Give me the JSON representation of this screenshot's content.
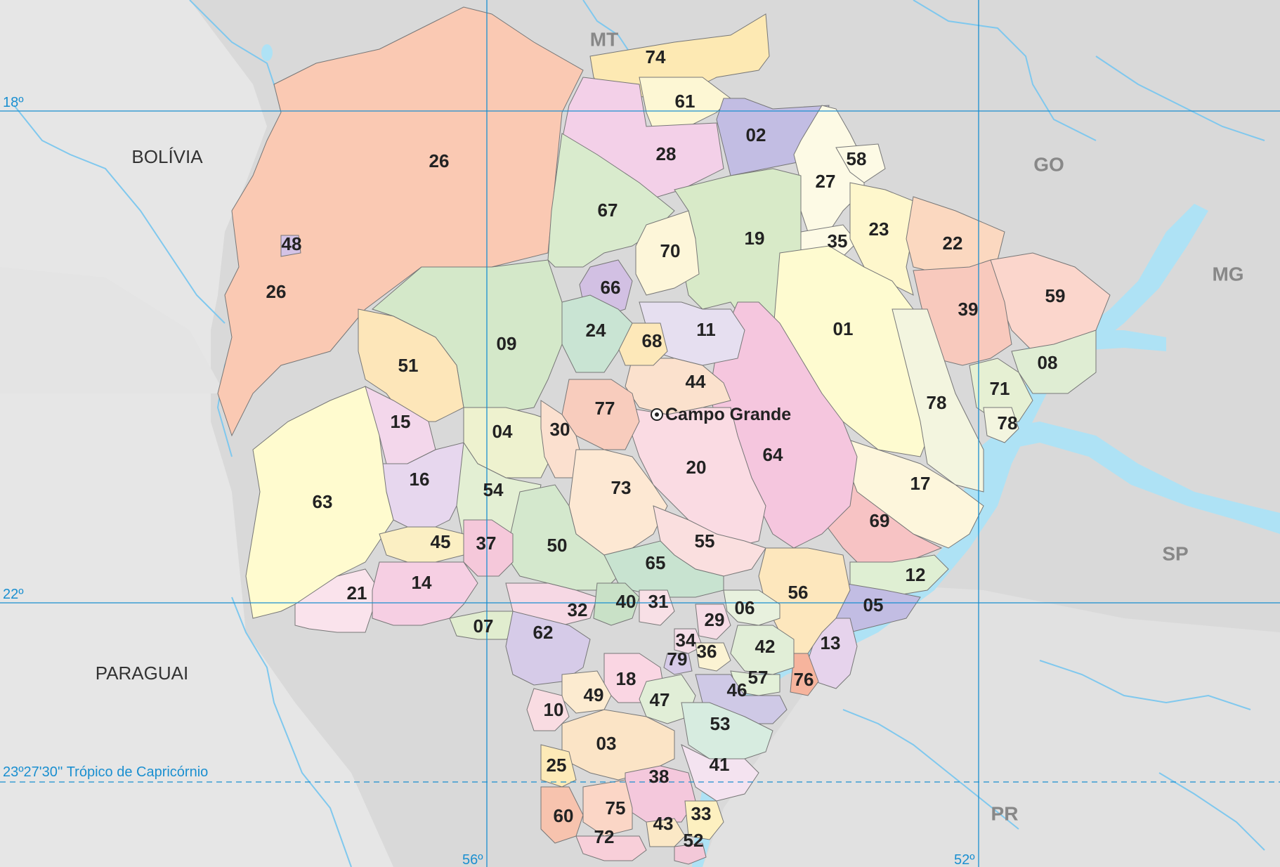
{
  "colors": {
    "background": "#d9d9d9",
    "gridline": "#1a8fd0",
    "water": "#aee2f5"
  },
  "grid": {
    "lat_labels": [
      "18º",
      "22º"
    ],
    "lon_labels": [
      "56º",
      "52º"
    ],
    "tropic_label": "23º27'30'' Trópico de Capricórnio"
  },
  "countries": [
    "BOLÍVIA",
    "PARAGUAI"
  ],
  "states": [
    "MT",
    "GO",
    "MG",
    "SP",
    "PR"
  ],
  "capital": {
    "name": "Campo Grande",
    "icon": "capital-dot-icon"
  },
  "municipalities": [
    {
      "id": "01",
      "color": "#fefbd0"
    },
    {
      "id": "02",
      "color": "#c2bde3"
    },
    {
      "id": "03",
      "color": "#fbe4c6"
    },
    {
      "id": "04",
      "color": "#eef2cf"
    },
    {
      "id": "05",
      "color": "#c2bde3"
    },
    {
      "id": "06",
      "color": "#e8f1de"
    },
    {
      "id": "07",
      "color": "#e1edcf"
    },
    {
      "id": "08",
      "color": "#dfedd3"
    },
    {
      "id": "09",
      "color": "#d4e8c9"
    },
    {
      "id": "10",
      "color": "#f9dce2"
    },
    {
      "id": "11",
      "color": "#e6dff0"
    },
    {
      "id": "12",
      "color": "#dfefd3"
    },
    {
      "id": "13",
      "color": "#e6d3ec"
    },
    {
      "id": "14",
      "color": "#f6cfe3"
    },
    {
      "id": "15",
      "color": "#f3d7eb"
    },
    {
      "id": "16",
      "color": "#e7d7ee"
    },
    {
      "id": "17",
      "color": "#fdf6dc"
    },
    {
      "id": "18",
      "color": "#fad6e3"
    },
    {
      "id": "19",
      "color": "#d8eac8"
    },
    {
      "id": "20",
      "color": "#fadbe3"
    },
    {
      "id": "21",
      "color": "#fae3ec"
    },
    {
      "id": "22",
      "color": "#fbd8c0"
    },
    {
      "id": "23",
      "color": "#fef7cc"
    },
    {
      "id": "24",
      "color": "#c9e4d3"
    },
    {
      "id": "25",
      "color": "#fdeab7"
    },
    {
      "id": "26",
      "color": "#fac9b3"
    },
    {
      "id": "27",
      "color": "#fdfae5"
    },
    {
      "id": "28",
      "color": "#f3d0e8"
    },
    {
      "id": "29",
      "color": "#f6dce6"
    },
    {
      "id": "30",
      "color": "#fbe0cf"
    },
    {
      "id": "31",
      "color": "#f8e0e6"
    },
    {
      "id": "32",
      "color": "#f6d8e4"
    },
    {
      "id": "33",
      "color": "#fdf0c0"
    },
    {
      "id": "34",
      "color": "#f5dde8"
    },
    {
      "id": "35",
      "color": "#fdfae5"
    },
    {
      "id": "36",
      "color": "#fbf3d3"
    },
    {
      "id": "37",
      "color": "#f5c8da"
    },
    {
      "id": "38",
      "color": "#f4c8dc"
    },
    {
      "id": "39",
      "color": "#f8c9bd"
    },
    {
      "id": "40",
      "color": "#c9e1c7"
    },
    {
      "id": "41",
      "color": "#f4e3f0"
    },
    {
      "id": "42",
      "color": "#e1eed7"
    },
    {
      "id": "43",
      "color": "#fbe8c6"
    },
    {
      "id": "44",
      "color": "#fbe1cd"
    },
    {
      "id": "45",
      "color": "#fbefc3"
    },
    {
      "id": "46",
      "color": "#cfc9e6"
    },
    {
      "id": "47",
      "color": "#e1eed7"
    },
    {
      "id": "48",
      "color": "#d4c3e6"
    },
    {
      "id": "49",
      "color": "#fcebd0"
    },
    {
      "id": "50",
      "color": "#d4e8cd"
    },
    {
      "id": "51",
      "color": "#fde6b9"
    },
    {
      "id": "52",
      "color": "#f3c8d8"
    },
    {
      "id": "53",
      "color": "#d7ece0"
    },
    {
      "id": "54",
      "color": "#e3efd3"
    },
    {
      "id": "55",
      "color": "#fadfdf"
    },
    {
      "id": "56",
      "color": "#fde7bd"
    },
    {
      "id": "57",
      "color": "#e3f0d8"
    },
    {
      "id": "58",
      "color": "#fdfae5"
    },
    {
      "id": "59",
      "color": "#fbd6cc"
    },
    {
      "id": "60",
      "color": "#f7c3ae"
    },
    {
      "id": "61",
      "color": "#fdf7d4"
    },
    {
      "id": "62",
      "color": "#d6cbe8"
    },
    {
      "id": "63",
      "color": "#fffbcf"
    },
    {
      "id": "64",
      "color": "#f5c6de"
    },
    {
      "id": "65",
      "color": "#c8e3d0"
    },
    {
      "id": "66",
      "color": "#d2c0e3"
    },
    {
      "id": "67",
      "color": "#d9ebcd"
    },
    {
      "id": "68",
      "color": "#fde8b9"
    },
    {
      "id": "69",
      "color": "#f7c3c4"
    },
    {
      "id": "70",
      "color": "#fdf6d9"
    },
    {
      "id": "71",
      "color": "#e6f0d3"
    },
    {
      "id": "72",
      "color": "#f8cfd9"
    },
    {
      "id": "73",
      "color": "#fde8d3"
    },
    {
      "id": "74",
      "color": "#fde9b3"
    },
    {
      "id": "75",
      "color": "#fbd6c6"
    },
    {
      "id": "76",
      "color": "#f6b49d"
    },
    {
      "id": "77",
      "color": "#f8ccbd"
    },
    {
      "id": "78",
      "color": "#f3f5df"
    },
    {
      "id": "79",
      "color": "#d6cbe8"
    }
  ]
}
